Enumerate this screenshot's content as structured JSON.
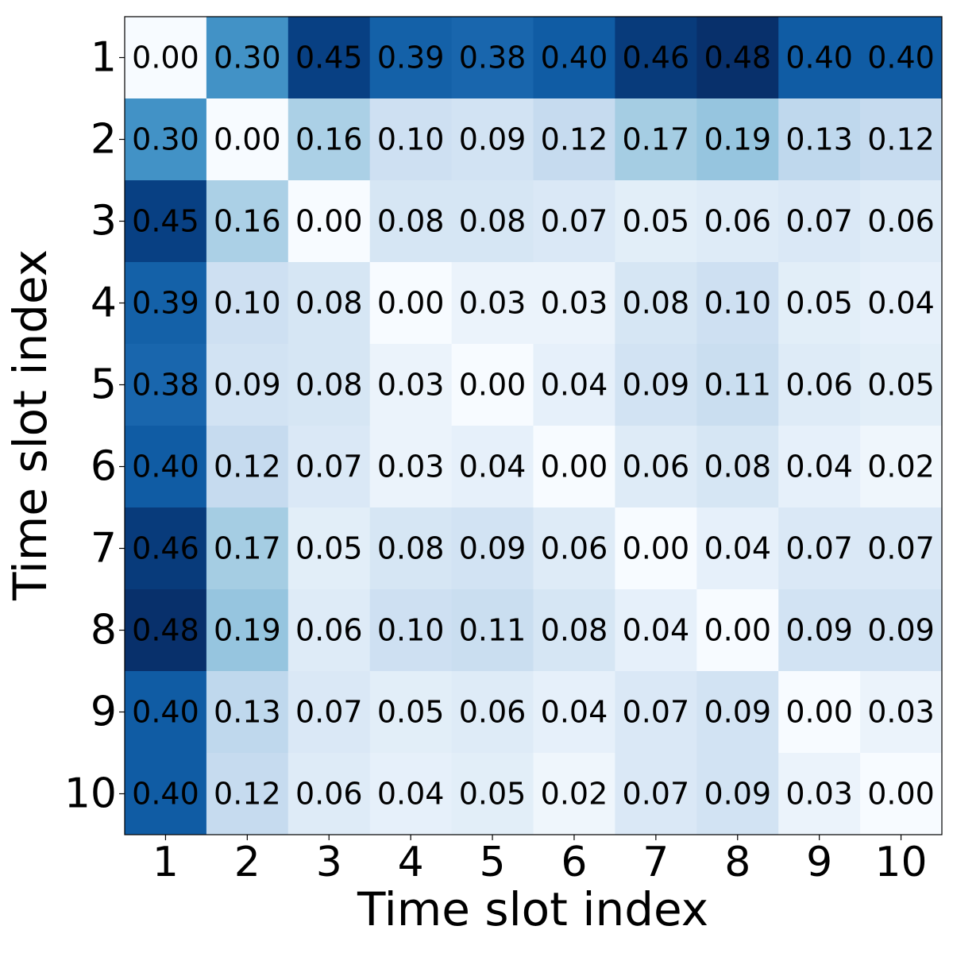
{
  "chart_data": {
    "type": "heatmap",
    "title": "",
    "xlabel": "Time slot index",
    "ylabel": "Time slot index",
    "x_categories": [
      "1",
      "2",
      "3",
      "4",
      "5",
      "6",
      "7",
      "8",
      "9",
      "10"
    ],
    "y_categories": [
      "1",
      "2",
      "3",
      "4",
      "5",
      "6",
      "7",
      "8",
      "9",
      "10"
    ],
    "colormap": "Blues",
    "value_range": [
      0,
      0.48
    ],
    "values": [
      [
        0.0,
        0.3,
        0.45,
        0.39,
        0.38,
        0.4,
        0.46,
        0.48,
        0.4,
        0.4
      ],
      [
        0.3,
        0.0,
        0.16,
        0.1,
        0.09,
        0.12,
        0.17,
        0.19,
        0.13,
        0.12
      ],
      [
        0.45,
        0.16,
        0.0,
        0.08,
        0.08,
        0.07,
        0.05,
        0.06,
        0.07,
        0.06
      ],
      [
        0.39,
        0.1,
        0.08,
        0.0,
        0.03,
        0.03,
        0.08,
        0.1,
        0.05,
        0.04
      ],
      [
        0.38,
        0.09,
        0.08,
        0.03,
        0.0,
        0.04,
        0.09,
        0.11,
        0.06,
        0.05
      ],
      [
        0.4,
        0.12,
        0.07,
        0.03,
        0.04,
        0.0,
        0.06,
        0.08,
        0.04,
        0.02
      ],
      [
        0.46,
        0.17,
        0.05,
        0.08,
        0.09,
        0.06,
        0.0,
        0.04,
        0.07,
        0.07
      ],
      [
        0.48,
        0.19,
        0.06,
        0.1,
        0.11,
        0.08,
        0.04,
        0.0,
        0.09,
        0.09
      ],
      [
        0.4,
        0.13,
        0.07,
        0.05,
        0.06,
        0.04,
        0.07,
        0.09,
        0.0,
        0.03
      ],
      [
        0.4,
        0.12,
        0.06,
        0.04,
        0.05,
        0.02,
        0.07,
        0.09,
        0.03,
        0.0
      ]
    ],
    "text_color": "#000000"
  }
}
